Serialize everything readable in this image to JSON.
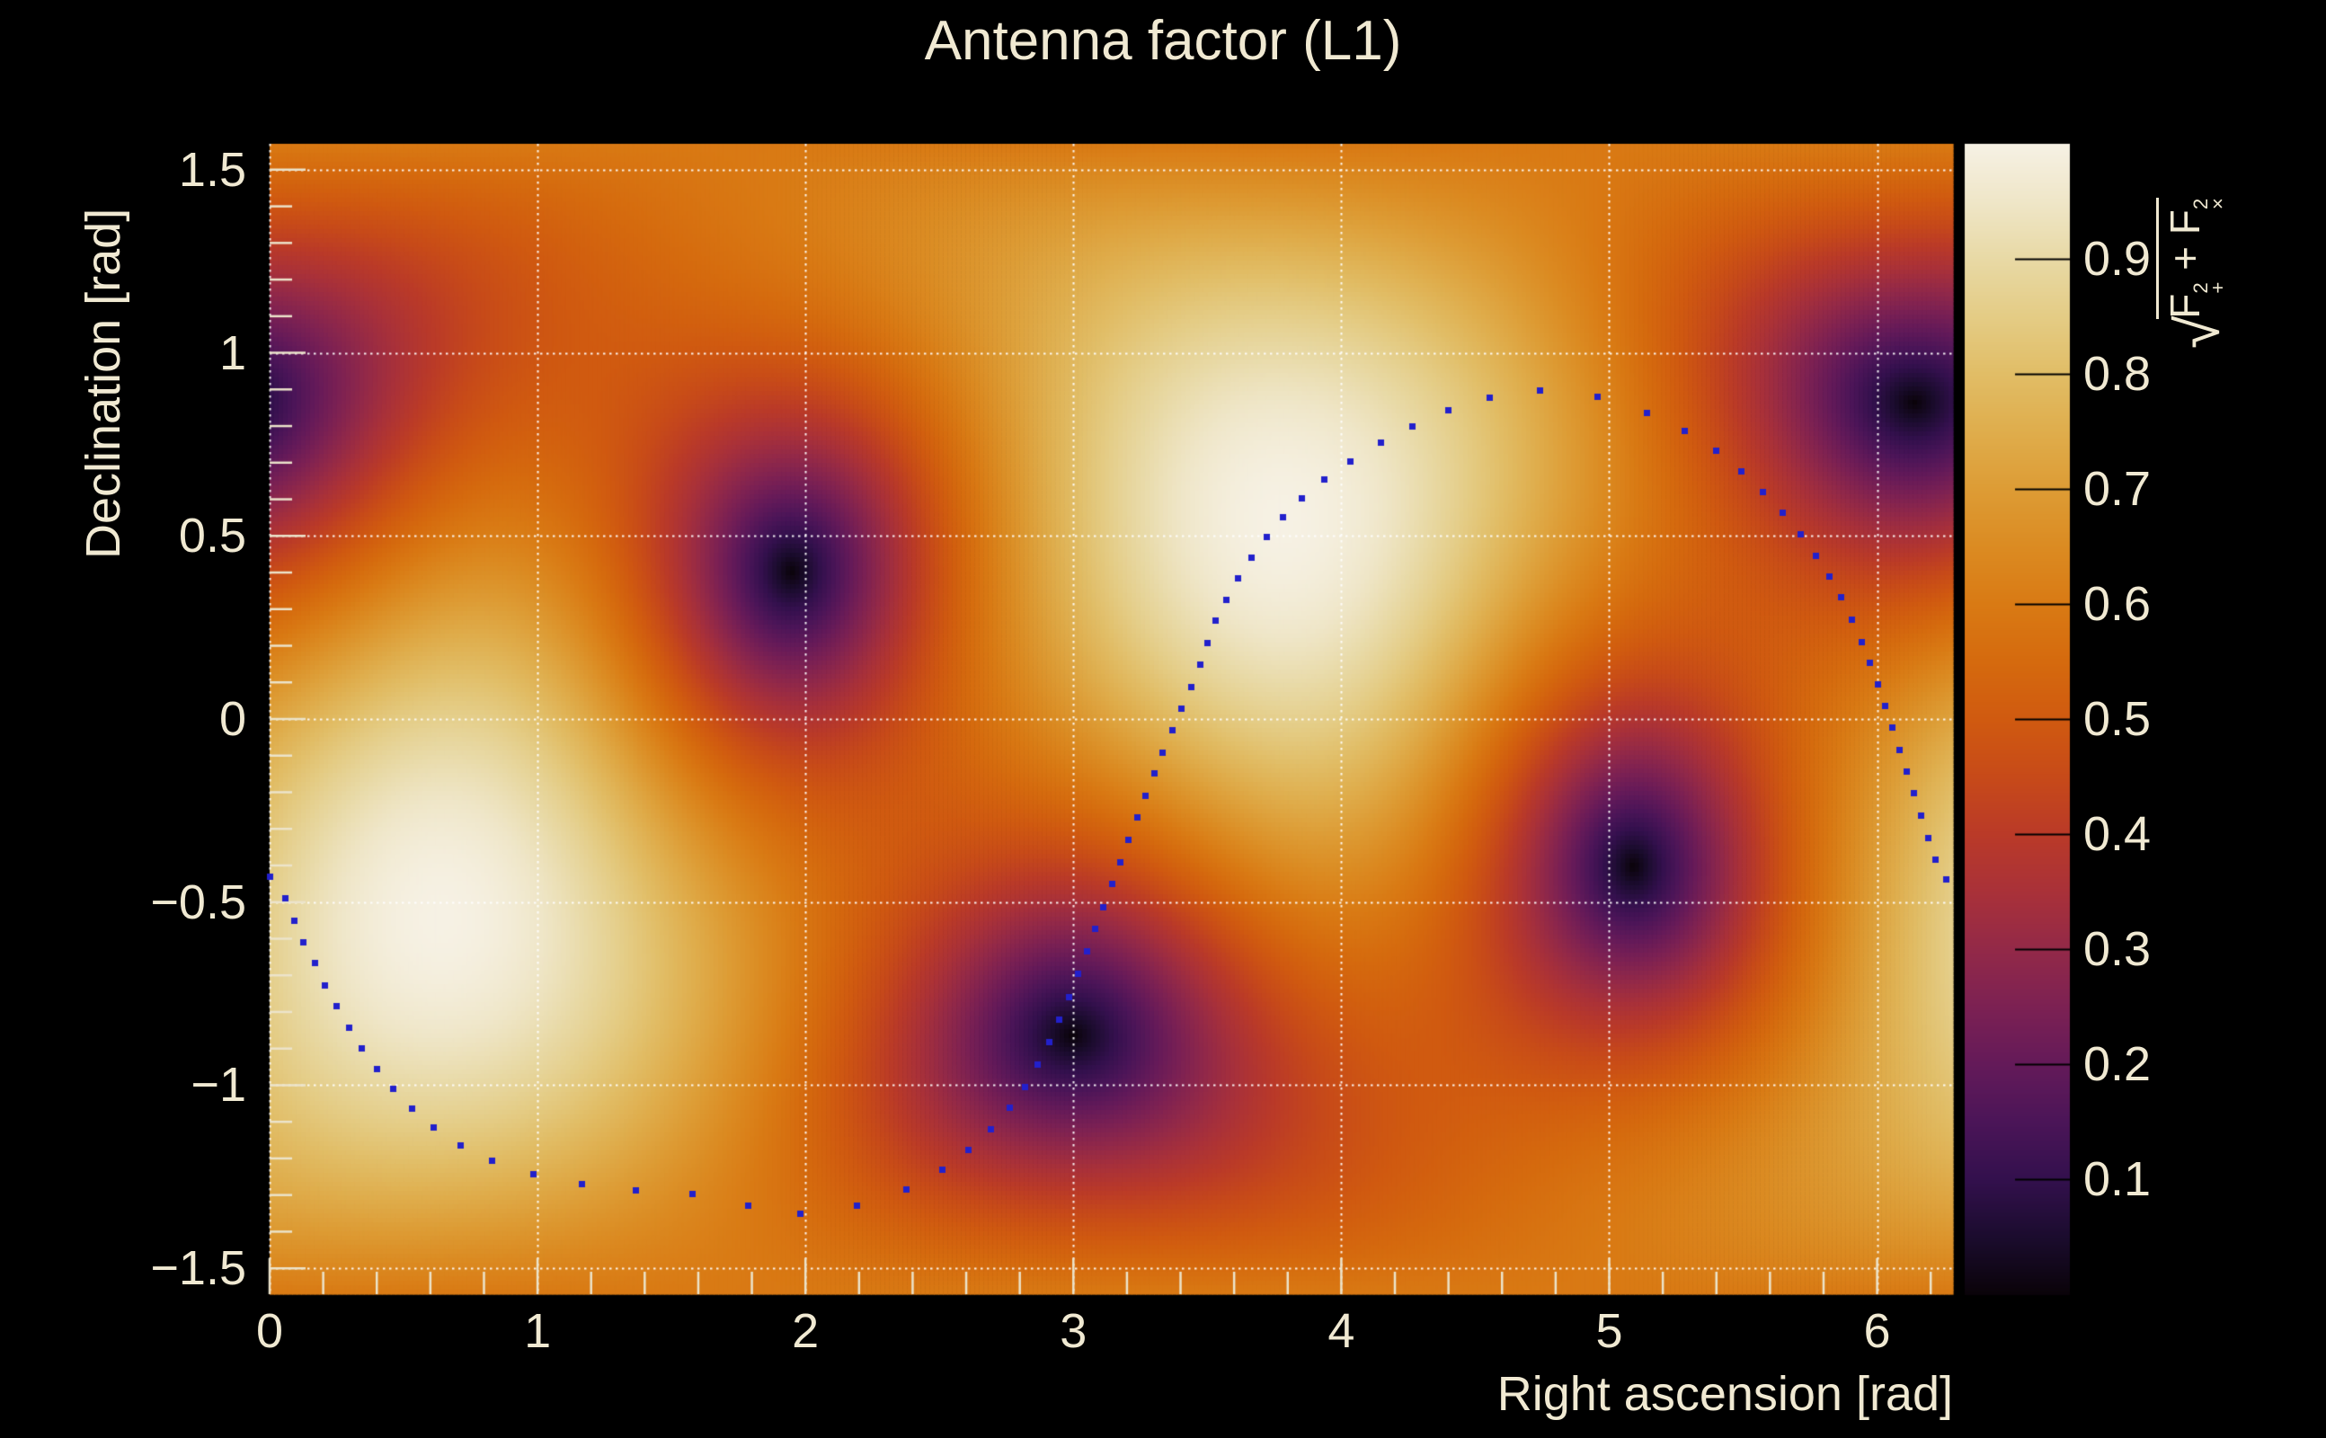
{
  "title": "Antenna factor (L1)",
  "axes": {
    "x": {
      "title": "Right ascension [rad]",
      "min": 0,
      "max": 6.28319,
      "major_ticks": [
        {
          "v": 0,
          "label": "0"
        },
        {
          "v": 1,
          "label": "1"
        },
        {
          "v": 2,
          "label": "2"
        },
        {
          "v": 3,
          "label": "3"
        },
        {
          "v": 4,
          "label": "4"
        },
        {
          "v": 5,
          "label": "5"
        },
        {
          "v": 6,
          "label": "6"
        }
      ],
      "minor_step": 0.2
    },
    "y": {
      "title": "Declination [rad]",
      "min": -1.5708,
      "max": 1.5708,
      "major_ticks": [
        {
          "v": 1.5,
          "label": "1.5"
        },
        {
          "v": 1.0,
          "label": "1"
        },
        {
          "v": 0.5,
          "label": "0.5"
        },
        {
          "v": 0.0,
          "label": "0"
        },
        {
          "v": -0.5,
          "label": "−0.5"
        },
        {
          "v": -1.0,
          "label": "−1"
        },
        {
          "v": -1.5,
          "label": "−1.5"
        }
      ],
      "minor_step": 0.1
    },
    "z": {
      "radical": "√",
      "f1": "F",
      "sup1": "2",
      "sub1": "+",
      "op": " + ",
      "f2": "F",
      "sup2": "2",
      "sub2": "×",
      "range": [
        0,
        1
      ],
      "ticks": [
        {
          "v": 0.1,
          "label": "0.1"
        },
        {
          "v": 0.2,
          "label": "0.2"
        },
        {
          "v": 0.3,
          "label": "0.3"
        },
        {
          "v": 0.4,
          "label": "0.4"
        },
        {
          "v": 0.5,
          "label": "0.5"
        },
        {
          "v": 0.6,
          "label": "0.6"
        },
        {
          "v": 0.7,
          "label": "0.7"
        },
        {
          "v": 0.8,
          "label": "0.8"
        },
        {
          "v": 0.9,
          "label": "0.9"
        }
      ]
    }
  },
  "chart_data": {
    "type": "heatmap",
    "title": "Antenna factor (L1)",
    "xlabel": "Right ascension [rad]",
    "ylabel": "Declination [rad]",
    "zlabel": "sqrt(F_plus^2 + F_cross^2)",
    "x_range": [
      0,
      6.28319
    ],
    "y_range": [
      -1.5708,
      1.5708
    ],
    "z_range": [
      0,
      1
    ],
    "grid": {
      "x": [
        0,
        1,
        2,
        3,
        4,
        5,
        6
      ],
      "y": [
        -1.5,
        -1.0,
        -0.5,
        0.0,
        0.5,
        1.0,
        1.5
      ]
    },
    "model": {
      "kind": "interferometer-antenna-pattern",
      "zenith_ra": 3.78,
      "zenith_dec": 0.545,
      "phi0": 1.8804,
      "maxima_radec": [
        [
          0.64,
          -0.545
        ],
        [
          3.78,
          0.545
        ]
      ],
      "nulls_radec": [
        [
          1.96,
          0.41
        ],
        [
          3.0,
          -0.86
        ],
        [
          5.09,
          -0.4
        ],
        [
          6.14,
          0.86
        ]
      ],
      "edge_value_at_poles": 0.6
    },
    "palette": [
      [
        0.0,
        "#0a0309"
      ],
      [
        0.05,
        "#1b0c2e"
      ],
      [
        0.1,
        "#33104d"
      ],
      [
        0.15,
        "#4b1558"
      ],
      [
        0.2,
        "#641a59"
      ],
      [
        0.25,
        "#7c2153"
      ],
      [
        0.3,
        "#932948"
      ],
      [
        0.35,
        "#a93139"
      ],
      [
        0.4,
        "#ba3a28"
      ],
      [
        0.45,
        "#c74a19"
      ],
      [
        0.5,
        "#d05a10"
      ],
      [
        0.55,
        "#d56a0e"
      ],
      [
        0.6,
        "#d97a14"
      ],
      [
        0.65,
        "#db8b22"
      ],
      [
        0.7,
        "#dd9c35"
      ],
      [
        0.75,
        "#dfad4c"
      ],
      [
        0.8,
        "#e1bd66"
      ],
      [
        0.85,
        "#e4cc85"
      ],
      [
        0.9,
        "#e8d9a5"
      ],
      [
        0.95,
        "#efe6c8"
      ],
      [
        1.0,
        "#f6f1e4"
      ]
    ],
    "overlay_curve": {
      "marker": "square",
      "marker_px": 7,
      "color": "#2220cc",
      "points": [
        [
          0.0,
          -0.43
        ],
        [
          0.04,
          -0.465
        ],
        [
          0.08,
          -0.53
        ],
        [
          0.12,
          -0.6
        ],
        [
          0.17,
          -0.67
        ],
        [
          0.22,
          -0.745
        ],
        [
          0.28,
          -0.82
        ],
        [
          0.34,
          -0.895
        ],
        [
          0.42,
          -0.975
        ],
        [
          0.51,
          -1.05
        ],
        [
          0.62,
          -1.12
        ],
        [
          0.75,
          -1.18
        ],
        [
          0.92,
          -1.23
        ],
        [
          1.12,
          -1.265
        ],
        [
          1.36,
          -1.286
        ],
        [
          1.6,
          -1.3
        ],
        [
          1.8,
          -1.33
        ],
        [
          1.98,
          -1.35
        ],
        [
          2.18,
          -1.33
        ],
        [
          2.36,
          -1.29
        ],
        [
          2.51,
          -1.23
        ],
        [
          2.65,
          -1.15
        ],
        [
          2.77,
          -1.055
        ],
        [
          2.87,
          -0.94
        ],
        [
          2.96,
          -0.8
        ],
        [
          3.06,
          -0.615
        ],
        [
          3.15,
          -0.44
        ],
        [
          3.23,
          -0.285
        ],
        [
          3.31,
          -0.135
        ],
        [
          3.39,
          0.005
        ],
        [
          3.47,
          0.14
        ],
        [
          3.53,
          0.265
        ],
        [
          3.61,
          0.376
        ],
        [
          3.7,
          0.475
        ],
        [
          3.8,
          0.565
        ],
        [
          3.92,
          0.645
        ],
        [
          4.06,
          0.715
        ],
        [
          4.22,
          0.782
        ],
        [
          4.4,
          0.843
        ],
        [
          4.57,
          0.88
        ],
        [
          4.73,
          0.897
        ],
        [
          4.89,
          0.888
        ],
        [
          5.03,
          0.866
        ],
        [
          5.17,
          0.828
        ],
        [
          5.31,
          0.775
        ],
        [
          5.44,
          0.708
        ],
        [
          5.56,
          0.63
        ],
        [
          5.67,
          0.545
        ],
        [
          5.77,
          0.45
        ],
        [
          5.86,
          0.34
        ],
        [
          5.94,
          0.215
        ],
        [
          6.01,
          0.08
        ],
        [
          6.07,
          -0.055
        ],
        [
          6.125,
          -0.175
        ],
        [
          6.175,
          -0.29
        ],
        [
          6.22,
          -0.39
        ],
        [
          6.283,
          -0.47
        ]
      ]
    },
    "colors": {
      "background": "#000000",
      "text": "#f0e9d2",
      "tick": "#ece4cb",
      "gridline": "#ffffff",
      "colorbar_tick": "#000000"
    }
  }
}
